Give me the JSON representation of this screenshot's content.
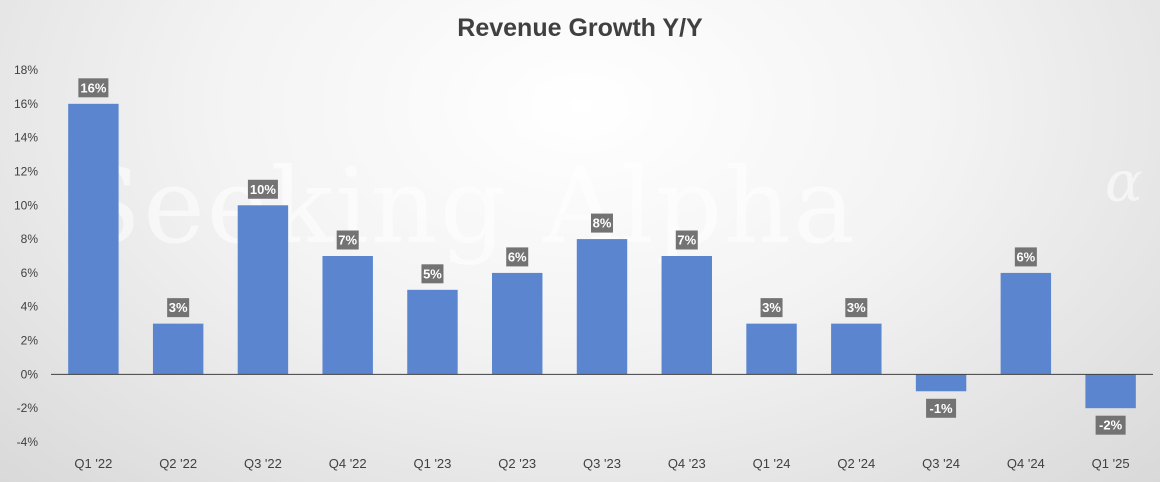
{
  "chart_data": {
    "type": "bar",
    "title": "Revenue Growth Y/Y",
    "categories": [
      "Q1 '22",
      "Q2 '22",
      "Q3 '22",
      "Q4 '22",
      "Q1 '23",
      "Q2 '23",
      "Q3 '23",
      "Q4 '23",
      "Q1 '24",
      "Q2 '24",
      "Q3 '24",
      "Q4 '24",
      "Q1 '25"
    ],
    "values": [
      16,
      3,
      10,
      7,
      5,
      6,
      8,
      7,
      3,
      3,
      -1,
      6,
      -2
    ],
    "data_labels": [
      "16%",
      "3%",
      "10%",
      "7%",
      "5%",
      "6%",
      "8%",
      "7%",
      "3%",
      "3%",
      "-1%",
      "6%",
      "-2%"
    ],
    "ylim": [
      -4,
      18
    ],
    "yticks": [
      -4,
      -2,
      0,
      2,
      4,
      6,
      8,
      10,
      12,
      14,
      16,
      18
    ],
    "ytick_labels": [
      "-4%",
      "-2%",
      "0%",
      "2%",
      "4%",
      "6%",
      "8%",
      "10%",
      "12%",
      "14%",
      "16%",
      "18%"
    ],
    "xlabel": "",
    "ylabel": "",
    "grid": false,
    "legend": "none",
    "bar_color": "#5b86cf",
    "data_label_bg": "#737373"
  },
  "watermark": {
    "text": "Seeking Alpha",
    "symbol": "α"
  }
}
